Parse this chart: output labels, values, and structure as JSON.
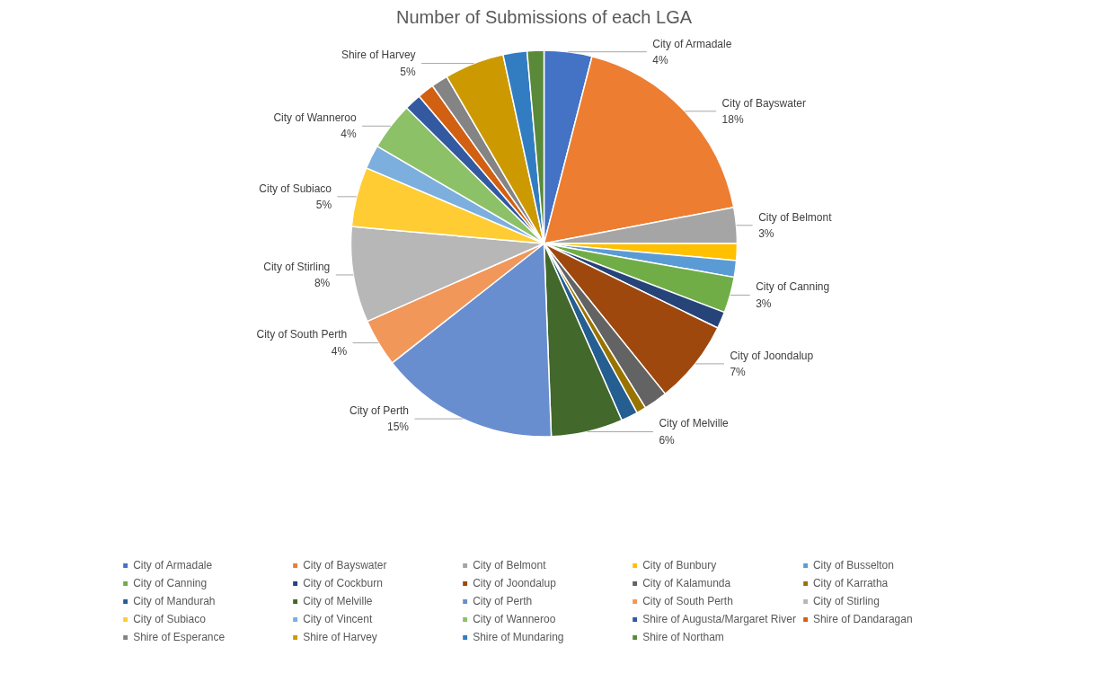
{
  "chart_data": {
    "type": "pie",
    "title": "Number of Submissions of each LGA",
    "categories": [
      "City of Armadale",
      "City of Bayswater",
      "City of Belmont",
      "City of Bunbury",
      "City of Busselton",
      "City of Canning",
      "City of Cockburn",
      "City of Joondalup",
      "City of Kalamunda",
      "City of Karratha",
      "City of Mandurah",
      "City of Melville",
      "City of Perth",
      "City of South Perth",
      "City of Stirling",
      "City of Subiaco",
      "City of Vincent",
      "City of Wanneroo",
      "Shire of Augusta/Margaret River",
      "Shire of Dandaragan",
      "Shire of Esperance",
      "Shire of Harvey",
      "Shire of Mundaring",
      "Shire of Northam"
    ],
    "values": [
      4,
      18,
      3,
      1.4,
      1.4,
      3,
      1.4,
      7,
      2,
      0.8,
      1.4,
      6,
      15,
      4,
      8,
      5,
      2,
      4,
      1.4,
      1.4,
      1.4,
      5,
      2,
      1.4
    ],
    "value_labels": [
      "4%",
      "18%",
      "3%",
      null,
      null,
      "3%",
      null,
      "7%",
      null,
      null,
      null,
      "6%",
      "15%",
      "4%",
      "8%",
      "5%",
      null,
      "4%",
      null,
      null,
      null,
      "5%",
      null,
      null
    ],
    "colors": [
      "#4472c4",
      "#ed7d31",
      "#a5a5a5",
      "#ffc000",
      "#5b9bd5",
      "#70ad47",
      "#264478",
      "#9e480e",
      "#636363",
      "#997300",
      "#255e91",
      "#43682b",
      "#698ed0",
      "#f1975a",
      "#b7b7b7",
      "#ffcd33",
      "#7cafdd",
      "#8cc168",
      "#335aa1",
      "#d26012",
      "#848484",
      "#cc9a00",
      "#327dc2",
      "#5a8a39"
    ],
    "legend": "bottom"
  }
}
